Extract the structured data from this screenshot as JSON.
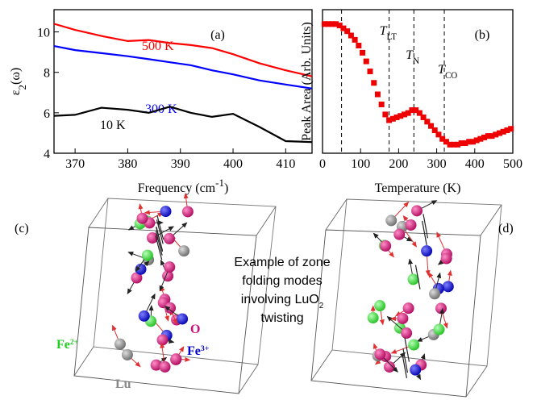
{
  "chart_data": [
    {
      "type": "line",
      "panel": "(a)",
      "xlabel": {
        "text": "Frequency (cm",
        "sup": "-1",
        "after": ")"
      },
      "ylabel": {
        "text": "ε",
        "sub": "2",
        "after": "(ω)"
      },
      "x": [
        366,
        370,
        375,
        380,
        384,
        388,
        392,
        396,
        400,
        405,
        410,
        415
      ],
      "series": [
        {
          "name": "500 K",
          "color": "#ff0000",
          "values": [
            10.4,
            10.1,
            9.8,
            9.55,
            9.6,
            9.45,
            9.35,
            9.2,
            8.9,
            8.45,
            8.1,
            7.8
          ]
        },
        {
          "name": "300 K",
          "color": "#0000ff",
          "values": [
            9.3,
            9.1,
            8.95,
            8.8,
            8.65,
            8.5,
            8.35,
            8.1,
            7.9,
            7.6,
            7.4,
            7.2
          ]
        },
        {
          "name": "10 K",
          "color": "#000000",
          "values": [
            5.85,
            5.9,
            6.25,
            6.15,
            6.0,
            6.3,
            6.0,
            5.8,
            5.95,
            5.3,
            4.6,
            4.55
          ]
        }
      ],
      "xlim": [
        366,
        415
      ],
      "xticks": [
        370,
        380,
        390,
        400,
        410
      ],
      "ylim": [
        4,
        11.1
      ],
      "yticks": [
        4,
        6,
        8,
        10
      ]
    },
    {
      "type": "scatter",
      "panel": "(b)",
      "xlabel": {
        "text": "Temperature (K)"
      },
      "ylabel": {
        "text": "Peak Area (Arb. Units)"
      },
      "x": [
        5,
        15,
        25,
        35,
        45,
        55,
        65,
        75,
        85,
        95,
        105,
        115,
        125,
        135,
        145,
        155,
        165,
        175,
        185,
        195,
        205,
        215,
        225,
        235,
        245,
        255,
        265,
        275,
        285,
        295,
        305,
        315,
        325,
        335,
        345,
        355,
        365,
        375,
        385,
        395,
        405,
        415,
        425,
        435,
        445,
        455,
        465,
        475,
        485,
        495
      ],
      "values": [
        0.9,
        0.9,
        0.9,
        0.9,
        0.89,
        0.87,
        0.85,
        0.82,
        0.79,
        0.75,
        0.7,
        0.64,
        0.57,
        0.49,
        0.41,
        0.34,
        0.27,
        0.23,
        0.24,
        0.25,
        0.26,
        0.27,
        0.28,
        0.3,
        0.3,
        0.28,
        0.25,
        0.22,
        0.19,
        0.16,
        0.13,
        0.1,
        0.08,
        0.06,
        0.06,
        0.06,
        0.07,
        0.07,
        0.08,
        0.08,
        0.09,
        0.1,
        0.11,
        0.12,
        0.12,
        0.13,
        0.14,
        0.15,
        0.16,
        0.17
      ],
      "color": "#ee0000",
      "xlim": [
        0,
        500
      ],
      "xticks": [
        0,
        100,
        200,
        300,
        400,
        500
      ],
      "ylim": [
        0,
        1
      ],
      "vlines": [
        50,
        175,
        240,
        320
      ],
      "annotations": [
        {
          "x": 175,
          "text": "T",
          "sub": "LT"
        },
        {
          "x": 240,
          "text": "T",
          "sub": "N"
        },
        {
          "x": 320,
          "text": "T",
          "sub": "CO"
        }
      ]
    }
  ],
  "diagram": {
    "left_label": "(c)",
    "right_label": "(d)",
    "caption": [
      {
        "text": "Example of zone"
      },
      {
        "text": "folding modes"
      },
      {
        "text": "involving LuO",
        "sub": "2"
      },
      {
        "text": "twisting"
      }
    ],
    "atoms": {
      "fe2": {
        "text": "Fe",
        "sup": "2+"
      },
      "o": {
        "text": "O"
      },
      "fe3": {
        "text": "Fe",
        "sup": "3+"
      },
      "lu": {
        "text": "Lu"
      }
    }
  }
}
